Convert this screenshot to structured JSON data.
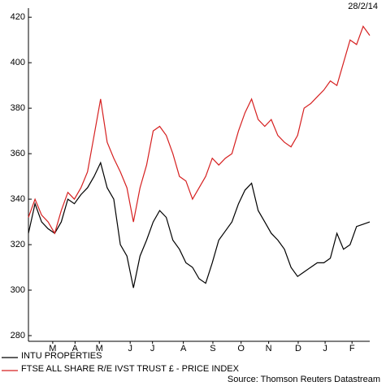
{
  "chart_data": {
    "type": "line",
    "date_label": "28/2/14",
    "source": "Source: Thomson Reuters Datastream",
    "x": [
      0,
      1,
      2,
      3,
      4,
      5,
      6,
      7,
      8,
      9,
      10,
      11,
      12,
      13,
      14,
      15,
      16,
      17,
      18,
      19,
      20,
      21,
      22,
      23,
      24,
      25,
      26,
      27,
      28,
      29,
      30,
      31,
      32,
      33,
      34,
      35,
      36,
      37,
      38,
      39,
      40,
      41,
      42,
      43,
      44,
      45,
      46,
      47,
      48,
      49,
      50,
      51,
      52
    ],
    "series": [
      {
        "name": "INTU PROPERTIES",
        "color": "#000000",
        "values": [
          325,
          338,
          330,
          327,
          325,
          330,
          340,
          338,
          342,
          345,
          350,
          356,
          345,
          340,
          320,
          315,
          301,
          315,
          322,
          330,
          335,
          332,
          322,
          318,
          312,
          310,
          305,
          303,
          312,
          322,
          326,
          330,
          338,
          344,
          347,
          335,
          330,
          325,
          322,
          318,
          310,
          306,
          308,
          310,
          312,
          312,
          314,
          325,
          318,
          320,
          328,
          329,
          330
        ]
      },
      {
        "name": "FTSE ALL SHARE R/E IVST TRUST £ - PRICE INDEX",
        "color": "#d62020",
        "values": [
          332,
          340,
          333,
          330,
          325,
          335,
          343,
          340,
          345,
          352,
          368,
          384,
          365,
          358,
          352,
          345,
          330,
          345,
          355,
          370,
          372,
          368,
          360,
          350,
          348,
          340,
          345,
          350,
          358,
          355,
          358,
          360,
          370,
          378,
          384,
          375,
          372,
          375,
          368,
          365,
          363,
          368,
          380,
          382,
          385,
          388,
          392,
          390,
          400,
          410,
          408,
          416,
          412
        ]
      }
    ],
    "xlim": [
      0,
      52
    ],
    "xticks": [
      {
        "value": 3.7,
        "label": "M"
      },
      {
        "value": 7.1,
        "label": "A"
      },
      {
        "value": 10.8,
        "label": "M"
      },
      {
        "value": 15.5,
        "label": "J"
      },
      {
        "value": 18.9,
        "label": "J"
      },
      {
        "value": 23.6,
        "label": "A"
      },
      {
        "value": 28.1,
        "label": "S"
      },
      {
        "value": 32.4,
        "label": "O"
      },
      {
        "value": 36.6,
        "label": "N"
      },
      {
        "value": 41.1,
        "label": "D"
      },
      {
        "value": 45.2,
        "label": "J"
      },
      {
        "value": 49.3,
        "label": "F"
      }
    ],
    "ylim": [
      277.5,
      424
    ],
    "yticks": [
      280,
      300,
      320,
      340,
      360,
      380,
      400,
      420
    ],
    "grid": false
  }
}
